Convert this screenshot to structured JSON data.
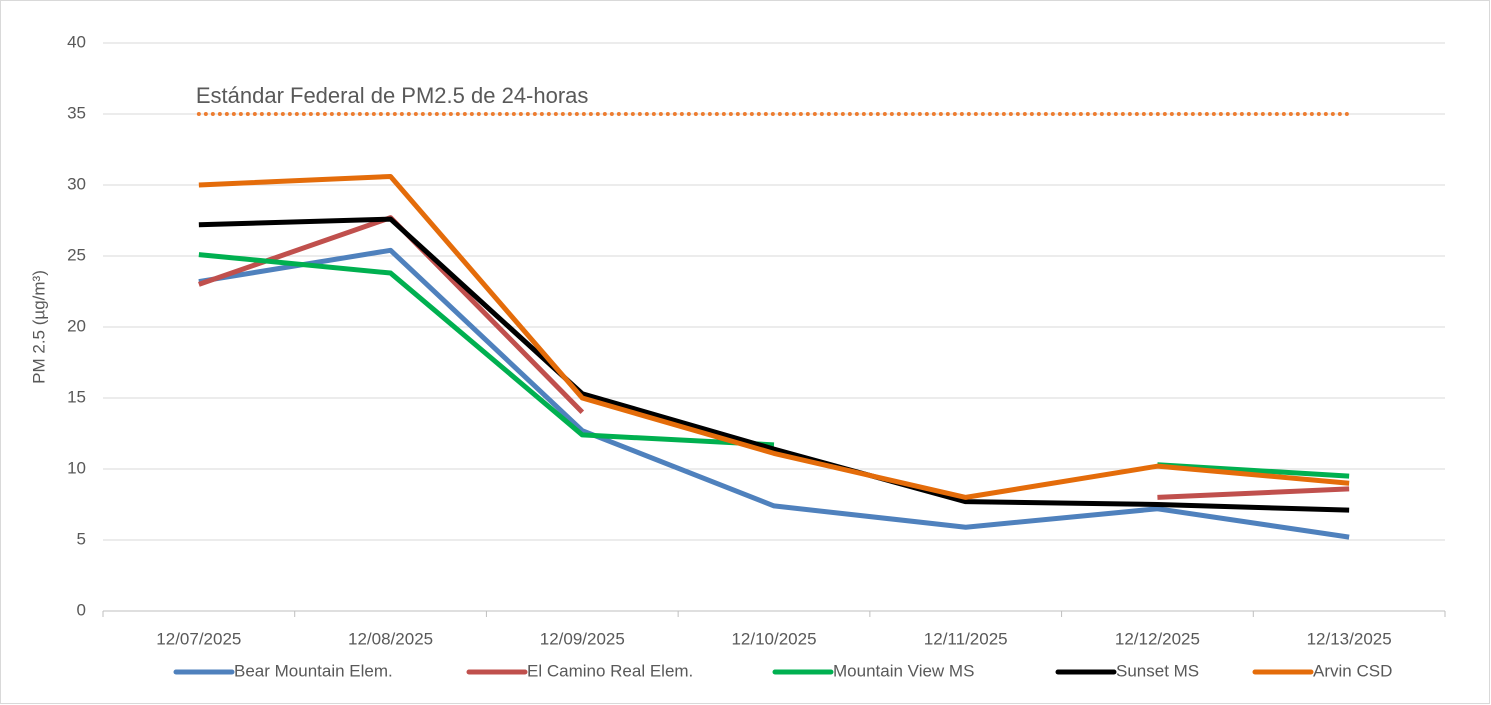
{
  "chart_data": {
    "type": "line",
    "ylabel": "PM 2.5 (µg/m³)",
    "categories": [
      "12/07/2025",
      "12/08/2025",
      "12/09/2025",
      "12/10/2025",
      "12/11/2025",
      "12/12/2025",
      "12/13/2025"
    ],
    "series": [
      {
        "name": "Bear Mountain Elem.",
        "color": "#4f81bd",
        "values": [
          23.2,
          25.4,
          12.7,
          7.4,
          5.9,
          7.2,
          5.2
        ]
      },
      {
        "name": "El Camino Real Elem.",
        "color": "#c0504d",
        "values": [
          23.0,
          27.7,
          14.0,
          null,
          null,
          8.0,
          8.6
        ]
      },
      {
        "name": "Mountain View MS",
        "color": "#00b050",
        "values": [
          25.1,
          23.8,
          12.4,
          11.7,
          null,
          10.3,
          9.5
        ]
      },
      {
        "name": "Sunset MS",
        "color": "#000000",
        "values": [
          27.2,
          27.6,
          15.3,
          11.4,
          7.7,
          7.5,
          7.1
        ]
      },
      {
        "name": "Arvin CSD",
        "color": "#e46c0a",
        "values": [
          30.0,
          30.6,
          15.0,
          11.1,
          8.0,
          10.2,
          9.0
        ]
      }
    ],
    "standard": {
      "label": "Estándar Federal de PM2.5 de 24-horas",
      "value": 35,
      "color": "#ed7d31"
    },
    "ylim": [
      0,
      40
    ],
    "yticks": [
      0,
      5,
      10,
      15,
      20,
      25,
      30,
      35,
      40
    ],
    "grid": true,
    "legend": "bottom"
  }
}
